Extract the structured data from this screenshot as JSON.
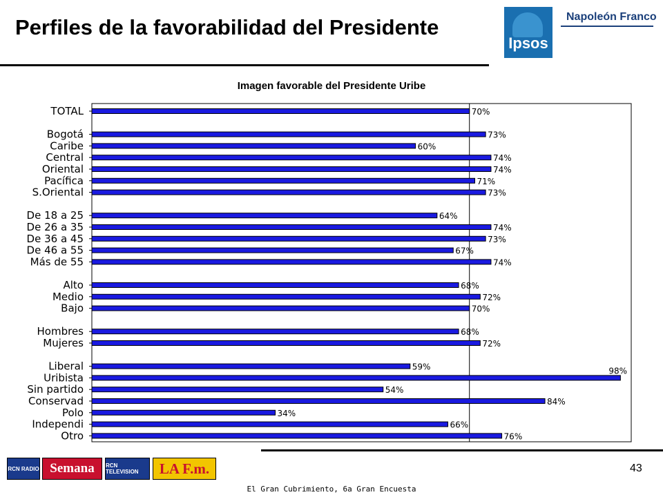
{
  "header": {
    "title": "Perfiles de la favorabilidad del Presidente",
    "logo_ipsos": "Ipsos",
    "logo_company": "Napoleón Franco"
  },
  "chart_data": {
    "type": "bar",
    "orientation": "horizontal",
    "title": "Imagen favorable del Presidente Uribe",
    "xlim": [
      0,
      100
    ],
    "reference_line": 70,
    "bar_color": "#1a1ae0",
    "categories": [
      "TOTAL",
      "Bogotá",
      "Caribe",
      "Central",
      "Oriental",
      "Pacífica",
      "S.Oriental",
      "De 18 a 25",
      "De 26 a 35",
      "De 36 a 45",
      "De 46 a 55",
      "Más de 55",
      "Alto",
      "Medio",
      "Bajo",
      "Hombres",
      "Mujeres",
      "Liberal",
      "Uribista",
      "Sin partido",
      "Conservad",
      "Polo",
      "Independi",
      "Otro"
    ],
    "values": [
      70,
      73,
      60,
      74,
      74,
      71,
      73,
      64,
      74,
      73,
      67,
      74,
      68,
      72,
      70,
      68,
      72,
      59,
      98,
      54,
      84,
      34,
      66,
      76
    ],
    "value_labels": [
      "70%",
      "73%",
      "60%",
      "74%",
      "74%",
      "71%",
      "73%",
      "64%",
      "74%",
      "73%",
      "67%",
      "74%",
      "68%",
      "72%",
      "70%",
      "68%",
      "72%",
      "59%",
      "98%",
      "54%",
      "84%",
      "34%",
      "66%",
      "76%"
    ],
    "groups": [
      1,
      6,
      5,
      3,
      2,
      7
    ]
  },
  "footer": {
    "page_number": "43",
    "caption": "El Gran Cubrimiento, 6a Gran Encuesta",
    "media_logos": [
      "RCN RADIO",
      "Semana",
      "RCN TELEVISION",
      "LA F.m."
    ]
  }
}
